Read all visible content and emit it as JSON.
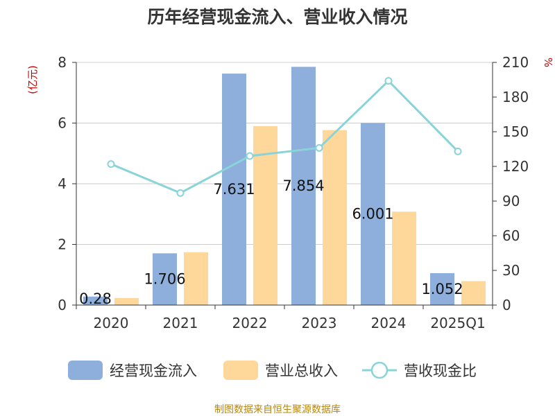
{
  "chart_data": {
    "type": "bar",
    "title": "历年经营现金流入、营业收入情况",
    "categories": [
      "2020",
      "2021",
      "2022",
      "2023",
      "2024",
      "2025Q1"
    ],
    "y_left": {
      "unit": "(亿元)",
      "range": [
        0,
        8
      ],
      "ticks": [
        "0",
        "2",
        "4",
        "6",
        "8"
      ]
    },
    "y_right": {
      "unit": "%",
      "range": [
        0,
        210
      ],
      "ticks": [
        "0",
        "30",
        "60",
        "90",
        "120",
        "150",
        "180",
        "210"
      ]
    },
    "grid": true,
    "legend_position": "bottom",
    "series": [
      {
        "name": "经营现金流入",
        "type": "bar",
        "axis": "left",
        "color": "#8eaedb",
        "values": [
          0.28,
          1.706,
          7.631,
          7.854,
          6.001,
          1.052
        ],
        "labels": [
          "0.28",
          "1.706",
          "7.631",
          "7.854",
          "6.001",
          "1.052"
        ]
      },
      {
        "name": "营业总收入",
        "type": "bar",
        "axis": "left",
        "color": "#fdd89a",
        "values": [
          0.23,
          1.74,
          5.9,
          5.77,
          3.08,
          0.79
        ]
      },
      {
        "name": "营收现金比",
        "type": "line",
        "axis": "right",
        "color": "#88d4d8",
        "values": [
          122,
          97,
          129,
          136,
          194,
          133
        ]
      }
    ]
  },
  "source": "制图数据来自恒生聚源数据库"
}
